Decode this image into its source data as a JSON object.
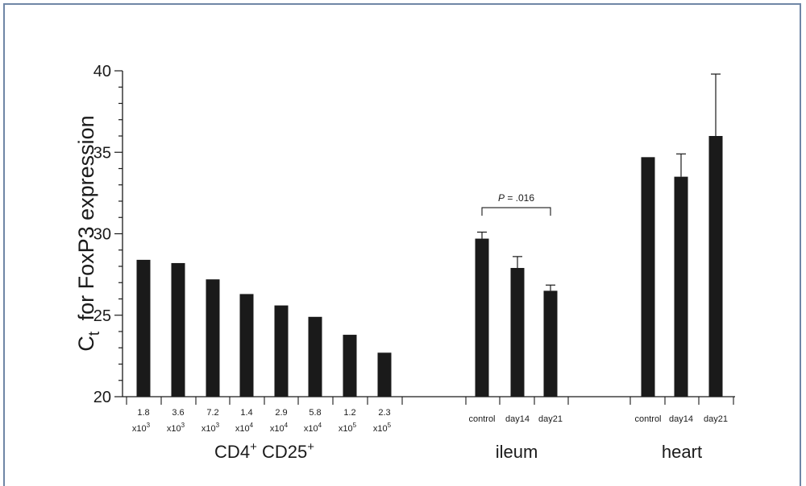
{
  "chart_data": {
    "type": "bar",
    "ylabel": "C",
    "ylabel_sub": "t",
    "ylabel_rest": "for FoxP3 expression",
    "ylim": [
      20,
      40
    ],
    "yticks": [
      20,
      25,
      30,
      35,
      40
    ],
    "color": "#1a1a1a",
    "frame_color": "#6f86a6",
    "groups": [
      {
        "name": "CD4",
        "name_sup1": "+",
        "name_mid": " CD25",
        "name_sup2": "+",
        "categories": [
          {
            "line1": "1.8",
            "line2": "x10",
            "exp": "3"
          },
          {
            "line1": "3.6",
            "line2": "x10",
            "exp": "3"
          },
          {
            "line1": "7.2",
            "line2": "x10",
            "exp": "3"
          },
          {
            "line1": "1.4",
            "line2": "x10",
            "exp": "4"
          },
          {
            "line1": "2.9",
            "line2": "x10",
            "exp": "4"
          },
          {
            "line1": "5.8",
            "line2": "x10",
            "exp": "4"
          },
          {
            "line1": "1.2",
            "line2": "x10",
            "exp": "5"
          },
          {
            "line1": "2.3",
            "line2": "x10",
            "exp": "5"
          }
        ],
        "values": [
          28.4,
          28.2,
          27.2,
          26.3,
          25.6,
          24.9,
          23.8,
          22.7
        ],
        "errors": [
          0,
          0,
          0,
          0,
          0,
          0,
          0,
          0
        ]
      },
      {
        "name": "ileum",
        "categories": [
          {
            "line1": "control"
          },
          {
            "line1": "day14"
          },
          {
            "line1": "day21"
          }
        ],
        "values": [
          29.7,
          27.9,
          26.5
        ],
        "errors": [
          0.4,
          0.7,
          0.35
        ]
      },
      {
        "name": "heart",
        "categories": [
          {
            "line1": "control"
          },
          {
            "line1": "day14"
          },
          {
            "line1": "day21"
          }
        ],
        "values": [
          34.7,
          33.5,
          36.0
        ],
        "errors": [
          0,
          1.4,
          3.8
        ]
      }
    ],
    "annotations": [
      {
        "group": 1,
        "from": 0,
        "to": 2,
        "label_italic": "P",
        "label_rest": " = .016",
        "level": 31.6
      }
    ]
  }
}
